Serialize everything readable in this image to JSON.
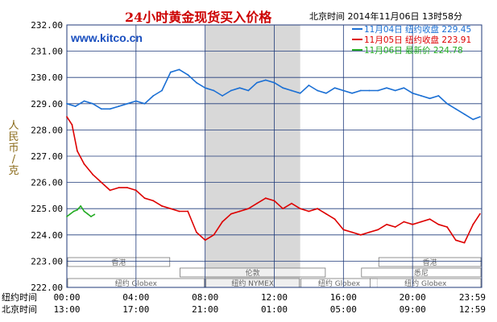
{
  "title": "24小时黄金现货买入价格",
  "timestamp": "北京时间 2014年11月06日 13时58分",
  "watermark": "www.kitco.cn",
  "ylabel": "人民币/克",
  "colors": {
    "series_blue": "#1a6fd4",
    "series_red": "#dd0000",
    "series_green": "#22aa22",
    "title": "#cc0000",
    "watermark": "#1a4fbf",
    "shade": "#d8d8d8",
    "grid": "#1f3a7a"
  },
  "legend": [
    {
      "label": "11月04日 纽约收盘 229.45",
      "color": "#1a6fd4"
    },
    {
      "label": "11月05日 纽约收盘 223.91",
      "color": "#dd0000"
    },
    {
      "label": "11月06日 最新价 224.78",
      "color": "#22aa22"
    }
  ],
  "sessions": [
    {
      "label": "香港",
      "start": 0,
      "end": 6
    },
    {
      "label": "伦敦",
      "start": 6.5,
      "end": 15
    },
    {
      "label": "纽约 Globex",
      "start": 0,
      "end": 8
    },
    {
      "label": "纽约 NYMEX",
      "start": 8,
      "end": 13.5
    },
    {
      "label": "纽约 Globex",
      "start": 13.5,
      "end": 18
    },
    {
      "label": "香港",
      "start": 18,
      "end": 24
    },
    {
      "label": "悉尼",
      "start": 17,
      "end": 24
    },
    {
      "label": "纽约 Globex",
      "start": 17.5,
      "end": 24
    }
  ],
  "time_rows": [
    {
      "label": "纽约时间",
      "ticks": [
        "00:00",
        "04:00",
        "08:00",
        "12:00",
        "16:00",
        "20:00",
        "23:59"
      ]
    },
    {
      "label": "北京时间",
      "ticks": [
        "13:00",
        "17:00",
        "21:00",
        "01:00",
        "05:00",
        "09:00",
        "12:59"
      ]
    }
  ],
  "chart_data": {
    "type": "line",
    "title": "24小时黄金现货买入价格",
    "ylabel": "人民币/克",
    "xlabel": "",
    "x_unit": "hours since 00:00 New York time",
    "xlim": [
      0,
      24
    ],
    "ylim": [
      222,
      232
    ],
    "yticks": [
      "232.00",
      "231.00",
      "230.00",
      "229.00",
      "228.00",
      "227.00",
      "226.00",
      "225.00",
      "224.00",
      "223.00",
      "222.00"
    ],
    "grid": true,
    "legend_position": "top-right",
    "shaded_region": [
      8,
      13.5
    ],
    "series": [
      {
        "name": "11月04日 纽约收盘 229.45",
        "color": "#1a6fd4",
        "x": [
          0,
          0.5,
          1.0,
          1.5,
          2.0,
          2.5,
          3.0,
          3.5,
          4.0,
          4.5,
          5.0,
          5.5,
          6.0,
          6.5,
          7.0,
          7.5,
          8.0,
          8.5,
          9.0,
          9.5,
          10.0,
          10.5,
          11.0,
          11.5,
          12.0,
          12.5,
          13.0,
          13.5,
          14.0,
          14.5,
          15.0,
          15.5,
          16.0,
          16.5,
          17.0,
          17.5,
          18.0,
          18.5,
          19.0,
          19.5,
          20.0,
          20.5,
          21.0,
          21.5,
          22.0,
          22.5,
          23.0,
          23.5,
          23.9
        ],
        "y": [
          229.0,
          228.9,
          229.1,
          229.0,
          228.8,
          228.8,
          228.9,
          229.0,
          229.1,
          229.0,
          229.3,
          229.5,
          230.2,
          230.3,
          230.1,
          229.8,
          229.6,
          229.5,
          229.3,
          229.5,
          229.6,
          229.5,
          229.8,
          229.9,
          229.8,
          229.6,
          229.5,
          229.4,
          229.7,
          229.5,
          229.4,
          229.6,
          229.5,
          229.4,
          229.5,
          229.5,
          229.5,
          229.6,
          229.5,
          229.6,
          229.4,
          229.3,
          229.2,
          229.3,
          229.0,
          228.8,
          228.6,
          228.4,
          228.5
        ]
      },
      {
        "name": "11月05日 纽约收盘 223.91",
        "color": "#dd0000",
        "x": [
          0,
          0.3,
          0.6,
          1.0,
          1.5,
          2.0,
          2.5,
          3.0,
          3.5,
          4.0,
          4.5,
          5.0,
          5.5,
          6.0,
          6.5,
          7.0,
          7.5,
          8.0,
          8.5,
          9.0,
          9.5,
          10.0,
          10.5,
          11.0,
          11.5,
          12.0,
          12.5,
          13.0,
          13.5,
          14.0,
          14.5,
          15.0,
          15.5,
          16.0,
          16.5,
          17.0,
          17.5,
          18.0,
          18.5,
          19.0,
          19.5,
          20.0,
          20.5,
          21.0,
          21.5,
          22.0,
          22.5,
          23.0,
          23.5,
          23.9
        ],
        "y": [
          228.5,
          228.2,
          227.2,
          226.7,
          226.3,
          226.0,
          225.7,
          225.8,
          225.8,
          225.7,
          225.4,
          225.3,
          225.1,
          225.0,
          224.9,
          224.9,
          224.1,
          223.8,
          224.0,
          224.5,
          224.8,
          224.9,
          225.0,
          225.2,
          225.4,
          225.3,
          225.0,
          225.2,
          225.0,
          224.9,
          225.0,
          224.8,
          224.6,
          224.2,
          224.1,
          224.0,
          224.1,
          224.2,
          224.4,
          224.3,
          224.5,
          224.4,
          224.5,
          224.6,
          224.4,
          224.3,
          223.8,
          223.7,
          224.4,
          224.8
        ]
      },
      {
        "name": "11月06日 最新价 224.78",
        "color": "#22aa22",
        "x": [
          0,
          0.2,
          0.4,
          0.6,
          0.8,
          1.0,
          1.2,
          1.4,
          1.6
        ],
        "y": [
          224.7,
          224.8,
          224.9,
          224.95,
          225.1,
          224.9,
          224.8,
          224.7,
          224.78
        ]
      }
    ]
  }
}
